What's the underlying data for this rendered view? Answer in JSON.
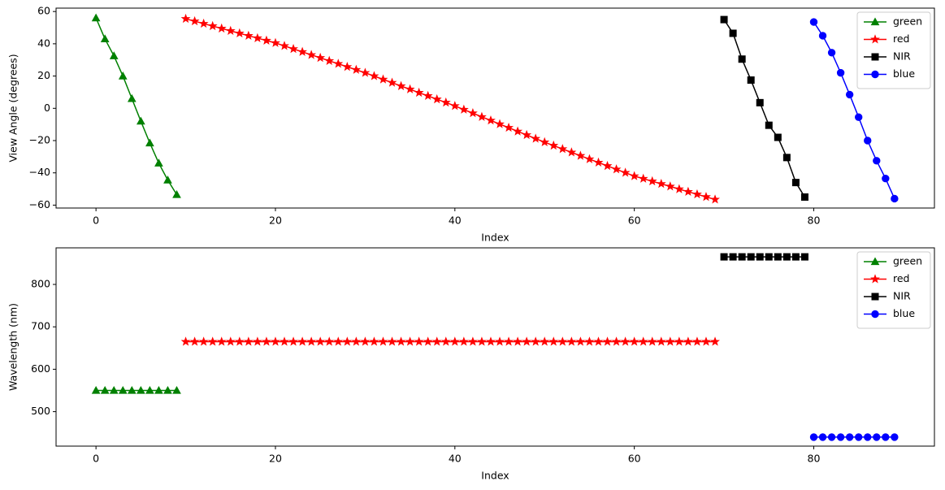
{
  "chart_data": [
    {
      "type": "line",
      "xlabel": "Index",
      "ylabel": "View Angle (degrees)",
      "xlim": [
        -4.45,
        93.45
      ],
      "ylim": [
        -61.8,
        62.1
      ],
      "xticks": [
        0,
        20,
        40,
        60,
        80
      ],
      "yticks": [
        {
          "value": -60,
          "label": "−60"
        },
        {
          "value": -40,
          "label": "−40"
        },
        {
          "value": -20,
          "label": "−20"
        },
        0,
        20,
        40,
        60
      ],
      "legend": "upper right",
      "series": [
        {
          "name": "green",
          "color": "#008000",
          "marker": "triangle",
          "x": [
            0,
            1,
            2,
            3,
            4,
            5,
            6,
            7,
            8,
            9
          ],
          "values": [
            56,
            43,
            32.5,
            20,
            6,
            -8,
            -21.5,
            -34,
            -44.5,
            -53.5
          ]
        },
        {
          "name": "red",
          "color": "#ff0000",
          "marker": "star",
          "x": [
            10,
            11,
            12,
            13,
            14,
            15,
            16,
            17,
            18,
            19,
            20,
            21,
            22,
            23,
            24,
            25,
            26,
            27,
            28,
            29,
            30,
            31,
            32,
            33,
            34,
            35,
            36,
            37,
            38,
            39,
            40,
            41,
            42,
            43,
            44,
            45,
            46,
            47,
            48,
            49,
            50,
            51,
            52,
            53,
            54,
            55,
            56,
            57,
            58,
            59,
            60,
            61,
            62,
            63,
            64,
            65,
            66,
            67,
            68,
            69
          ],
          "values": [
            55.5,
            54,
            52.5,
            51,
            49.5,
            48,
            46.5,
            45,
            43.5,
            42,
            40.5,
            38.7,
            36.8,
            35,
            33.1,
            31.3,
            29.4,
            27.6,
            25.7,
            23.9,
            22,
            20,
            17.9,
            15.9,
            13.8,
            11.8,
            9.7,
            7.7,
            5.6,
            3.6,
            1.5,
            -0.8,
            -3,
            -5.3,
            -7.5,
            -9.8,
            -12,
            -14.3,
            -16.5,
            -18.8,
            -21,
            -23.1,
            -25.2,
            -27.3,
            -29.4,
            -31.5,
            -33.6,
            -35.7,
            -37.8,
            -39.9,
            -42,
            -43.6,
            -45.2,
            -46.8,
            -48.4,
            -50.1,
            -51.7,
            -53.3,
            -54.9,
            -56.5
          ]
        },
        {
          "name": "NIR",
          "color": "#000000",
          "marker": "square",
          "x": [
            70,
            71,
            72,
            73,
            74,
            75,
            76,
            77,
            78,
            79
          ],
          "values": [
            55,
            46.5,
            30.5,
            17.5,
            3.5,
            -10.5,
            -18,
            -30.5,
            -46,
            -55
          ]
        },
        {
          "name": "blue",
          "color": "#0000ff",
          "marker": "circle",
          "x": [
            80,
            81,
            82,
            83,
            84,
            85,
            86,
            87,
            88,
            89
          ],
          "values": [
            53.5,
            45,
            34.5,
            22,
            8.5,
            -5.5,
            -20,
            -32.5,
            -43.5,
            -56
          ]
        }
      ]
    },
    {
      "type": "line",
      "xlabel": "Index",
      "ylabel": "Wavelength (nm)",
      "xlim": [
        -4.45,
        93.45
      ],
      "ylim": [
        418.75,
        886.25
      ],
      "xticks": [
        0,
        20,
        40,
        60,
        80
      ],
      "yticks": [
        500,
        600,
        700,
        800
      ],
      "legend": "upper right",
      "series": [
        {
          "name": "green",
          "color": "#008000",
          "marker": "triangle",
          "x": [
            0,
            1,
            2,
            3,
            4,
            5,
            6,
            7,
            8,
            9
          ],
          "values": [
            550,
            550,
            550,
            550,
            550,
            550,
            550,
            550,
            550,
            550
          ]
        },
        {
          "name": "red",
          "color": "#ff0000",
          "marker": "star",
          "x": [
            10,
            11,
            12,
            13,
            14,
            15,
            16,
            17,
            18,
            19,
            20,
            21,
            22,
            23,
            24,
            25,
            26,
            27,
            28,
            29,
            30,
            31,
            32,
            33,
            34,
            35,
            36,
            37,
            38,
            39,
            40,
            41,
            42,
            43,
            44,
            45,
            46,
            47,
            48,
            49,
            50,
            51,
            52,
            53,
            54,
            55,
            56,
            57,
            58,
            59,
            60,
            61,
            62,
            63,
            64,
            65,
            66,
            67,
            68,
            69
          ],
          "values": [
            665,
            665,
            665,
            665,
            665,
            665,
            665,
            665,
            665,
            665,
            665,
            665,
            665,
            665,
            665,
            665,
            665,
            665,
            665,
            665,
            665,
            665,
            665,
            665,
            665,
            665,
            665,
            665,
            665,
            665,
            665,
            665,
            665,
            665,
            665,
            665,
            665,
            665,
            665,
            665,
            665,
            665,
            665,
            665,
            665,
            665,
            665,
            665,
            665,
            665,
            665,
            665,
            665,
            665,
            665,
            665,
            665,
            665,
            665,
            665
          ]
        },
        {
          "name": "NIR",
          "color": "#000000",
          "marker": "square",
          "x": [
            70,
            71,
            72,
            73,
            74,
            75,
            76,
            77,
            78,
            79
          ],
          "values": [
            865,
            865,
            865,
            865,
            865,
            865,
            865,
            865,
            865,
            865
          ]
        },
        {
          "name": "blue",
          "color": "#0000ff",
          "marker": "circle",
          "x": [
            80,
            81,
            82,
            83,
            84,
            85,
            86,
            87,
            88,
            89
          ],
          "values": [
            440,
            440,
            440,
            440,
            440,
            440,
            440,
            440,
            440,
            440
          ]
        }
      ]
    }
  ]
}
